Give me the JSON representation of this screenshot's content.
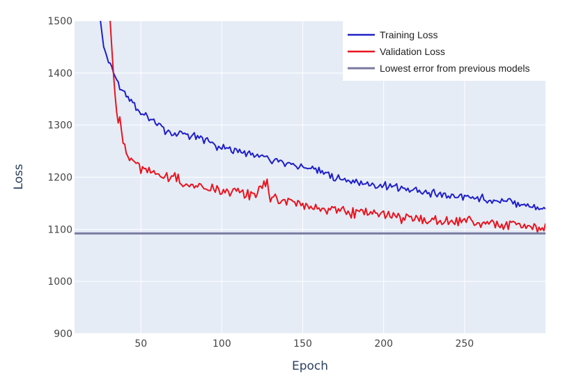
{
  "chart_data": {
    "type": "line",
    "title": "",
    "xlabel": "Epoch",
    "ylabel": "Loss",
    "xlim": [
      9,
      300
    ],
    "ylim": [
      900,
      1500
    ],
    "x_ticks": [
      50,
      100,
      150,
      200,
      250
    ],
    "y_ticks": [
      900,
      1000,
      1100,
      1200,
      1300,
      1400,
      1500
    ],
    "grid": true,
    "legend_position": "top-right",
    "series": [
      {
        "name": "Training Loss",
        "color": "#1f1fc8",
        "x": [
          25,
          27,
          30,
          33,
          36,
          40,
          45,
          50,
          55,
          60,
          65,
          70,
          75,
          80,
          85,
          90,
          95,
          100,
          110,
          120,
          130,
          140,
          150,
          160,
          170,
          180,
          190,
          200,
          210,
          220,
          230,
          240,
          250,
          260,
          270,
          280,
          290,
          300
        ],
        "values": [
          1500,
          1450,
          1420,
          1400,
          1380,
          1360,
          1345,
          1325,
          1315,
          1305,
          1290,
          1280,
          1288,
          1275,
          1278,
          1270,
          1262,
          1258,
          1250,
          1243,
          1235,
          1228,
          1220,
          1210,
          1200,
          1193,
          1188,
          1183,
          1180,
          1175,
          1170,
          1165,
          1162,
          1160,
          1155,
          1152,
          1147,
          1140
        ]
      },
      {
        "name": "Validation Loss",
        "color": "#e8141e",
        "x": [
          31,
          32,
          33,
          34,
          35,
          36,
          37,
          38,
          40,
          42,
          45,
          50,
          55,
          60,
          65,
          70,
          75,
          80,
          90,
          100,
          110,
          120,
          128,
          130,
          140,
          150,
          160,
          170,
          180,
          190,
          200,
          210,
          220,
          230,
          240,
          250,
          260,
          270,
          280,
          290,
          295,
          300
        ],
        "values": [
          1500,
          1450,
          1400,
          1360,
          1330,
          1305,
          1320,
          1290,
          1255,
          1232,
          1240,
          1215,
          1212,
          1205,
          1198,
          1205,
          1190,
          1185,
          1180,
          1175,
          1172,
          1162,
          1195,
          1158,
          1155,
          1145,
          1140,
          1138,
          1133,
          1130,
          1128,
          1122,
          1120,
          1118,
          1115,
          1115,
          1112,
          1110,
          1110,
          1108,
          1098,
          1102
        ]
      },
      {
        "name": "Lowest error from previous models",
        "color": "#7a7aa0",
        "x": [
          9,
          300
        ],
        "values": [
          1092,
          1092
        ]
      }
    ]
  }
}
